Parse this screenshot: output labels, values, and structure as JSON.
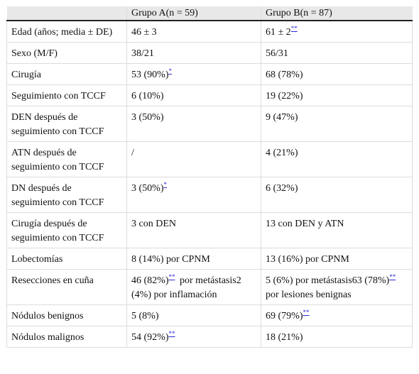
{
  "table": {
    "header": {
      "col1": "",
      "col2": "Grupo A(n = 59)",
      "col3": "Grupo B(n = 87)"
    },
    "rows": [
      {
        "label": "Edad (años; media ± DE)",
        "a": "46 ± 3",
        "b": "61 ± 2",
        "b_fn": "**"
      },
      {
        "label": "Sexo (M/F)",
        "a": "38/21",
        "b": "56/31"
      },
      {
        "label": "Cirugía",
        "a": "53 (90%)",
        "a_fn": "*",
        "b": "68 (78%)"
      },
      {
        "label": "Seguimiento con TCCF",
        "a": "6 (10%)",
        "b": "19 (22%)"
      },
      {
        "label": "DEN después de seguimiento con TCCF",
        "a": "3 (50%)",
        "b": "9 (47%)"
      },
      {
        "label": "ATN después de seguimiento con TCCF",
        "a": "/",
        "b": "4 (21%)"
      },
      {
        "label": "DN después de seguimiento con TCCF",
        "a": "3 (50%)",
        "a_fn": "*",
        "b": "6 (32%)"
      },
      {
        "label": "Cirugía después de seguimiento con TCCF",
        "a": "3 con DEN",
        "b": "13 con DEN y ATN"
      },
      {
        "label": "Lobectomías",
        "a": "8 (14%) por CPNM",
        "b": "13 (16%) por CPNM"
      },
      {
        "label": "Resecciones en cuña",
        "a": "46 (82%)",
        "a_fn": "**",
        "a_rest": "por metástasis2 (4%) por inflamación",
        "b": "5 (6%) por metástasis63 (78%)",
        "b_fn": "**",
        "b_rest": "por lesiones benignas"
      },
      {
        "label": "Nódulos benignos",
        "a": "5 (8%)",
        "b": "69 (79%)",
        "b_fn": "**"
      },
      {
        "label": "Nódulos malignos",
        "a": "54 (92%)",
        "a_fn": "**",
        "b": "18 (21%)"
      }
    ]
  }
}
